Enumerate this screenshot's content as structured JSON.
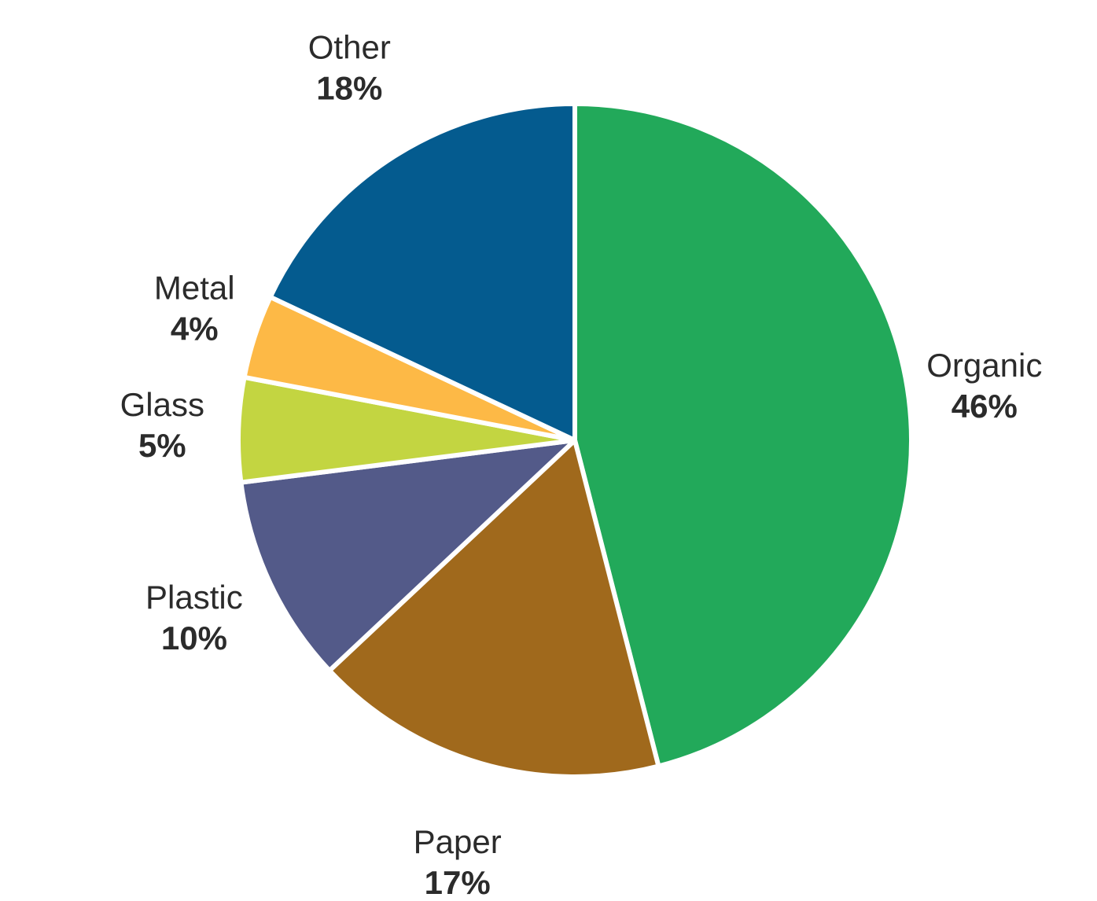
{
  "chart_data": {
    "type": "pie",
    "unit": "%",
    "slices": [
      {
        "label": "Organic",
        "value": 46,
        "value_label": "46%",
        "color": "#22a95a"
      },
      {
        "label": "Paper",
        "value": 17,
        "value_label": "17%",
        "color": "#a0691c"
      },
      {
        "label": "Plastic",
        "value": 10,
        "value_label": "10%",
        "color": "#535a89"
      },
      {
        "label": "Glass",
        "value": 5,
        "value_label": "5%",
        "color": "#c3d541"
      },
      {
        "label": "Metal",
        "value": 4,
        "value_label": "4%",
        "color": "#fdb946"
      },
      {
        "label": "Other",
        "value": 18,
        "value_label": "18%",
        "color": "#045b8f"
      }
    ],
    "start": "top",
    "direction": "clockwise",
    "separator_color": "#ffffff",
    "title": "",
    "legend": "none"
  }
}
